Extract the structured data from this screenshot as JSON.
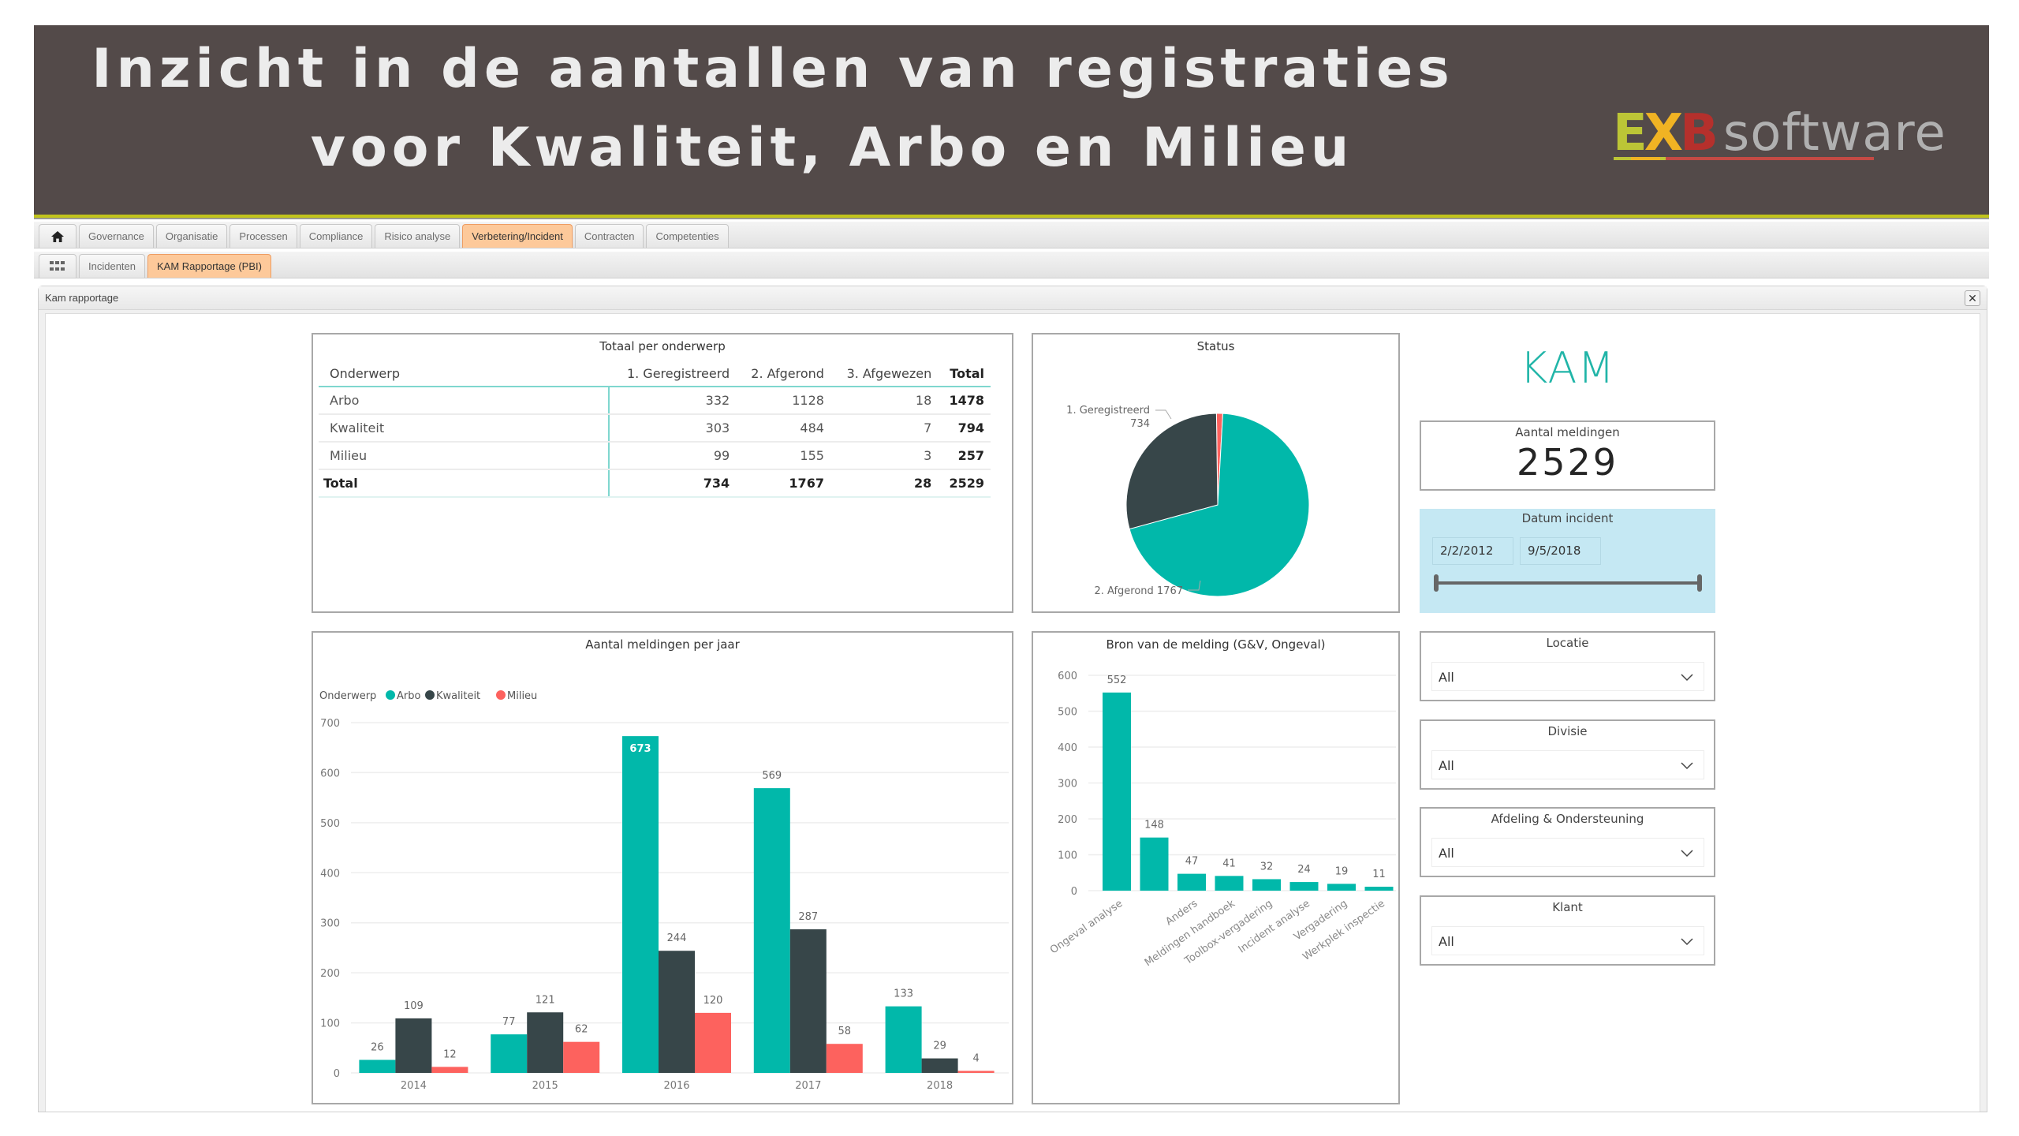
{
  "banner": {
    "title_line1": "Inzicht in de aantallen van registraties",
    "title_line2": "voor Kwaliteit, Arbo en Milieu",
    "logo": {
      "e": "E",
      "x": "X",
      "b": "B",
      "software": "software"
    }
  },
  "nav": {
    "primary_tabs": [
      {
        "label": "Governance",
        "active": false
      },
      {
        "label": "Organisatie",
        "active": false
      },
      {
        "label": "Processen",
        "active": false
      },
      {
        "label": "Compliance",
        "active": false
      },
      {
        "label": "Risico analyse",
        "active": false
      },
      {
        "label": "Verbetering/Incident",
        "active": true
      },
      {
        "label": "Contracten",
        "active": false
      },
      {
        "label": "Competenties",
        "active": false
      }
    ],
    "secondary_tabs": [
      {
        "label": "Incidenten",
        "active": false
      },
      {
        "label": "KAM Rapportage (PBI)",
        "active": true
      }
    ],
    "home_icon": "home-icon",
    "grid_icon": "grid-icon"
  },
  "window": {
    "title": "Kam rapportage",
    "close_label": "✕"
  },
  "matrix": {
    "title": "Totaal per onderwerp",
    "headers": [
      "Onderwerp",
      "1. Geregistreerd",
      "2. Afgerond",
      "3. Afgewezen",
      "Total"
    ],
    "rows": [
      {
        "name": "Arbo",
        "geregistreerd": "332",
        "afgerond": "1128",
        "afgewezen": "18",
        "total": "1478"
      },
      {
        "name": "Kwaliteit",
        "geregistreerd": "303",
        "afgerond": "484",
        "afgewezen": "7",
        "total": "794"
      },
      {
        "name": "Milieu",
        "geregistreerd": "99",
        "afgerond": "155",
        "afgewezen": "3",
        "total": "257"
      }
    ],
    "total_row": {
      "name": "Total",
      "geregistreerd": "734",
      "afgerond": "1767",
      "afgewezen": "28",
      "total": "2529"
    }
  },
  "kam": {
    "title": "KAM",
    "card_label": "Aantal meldingen",
    "card_value": "2529",
    "date_slicer": {
      "label": "Datum incident",
      "start": "2/2/2012",
      "end": "9/5/2018"
    }
  },
  "filters": [
    {
      "label": "Locatie",
      "value": "All"
    },
    {
      "label": "Divisie",
      "value": "All"
    },
    {
      "label": "Afdeling & Ondersteuning",
      "value": "All"
    },
    {
      "label": "Klant",
      "value": "All"
    }
  ],
  "colors": {
    "teal": "#01b8aa",
    "dark": "#374649",
    "red": "#fd625e",
    "accent_line": "#c1c41c",
    "banner": "#534a49"
  },
  "chart_data": [
    {
      "type": "pie",
      "title": "Status",
      "categories": [
        "1. Geregistreerd",
        "2. Afgerond",
        "3. Afgewezen"
      ],
      "values": [
        734,
        1767,
        28
      ],
      "labels_shown": [
        "1. Geregistreerd 734",
        "2. Afgerond 1767"
      ],
      "colors": [
        "#374649",
        "#01b8aa",
        "#fd625e"
      ]
    },
    {
      "type": "bar",
      "title": "Aantal meldingen per jaar",
      "legend_title": "Onderwerp",
      "legend_position": "top-left",
      "categories": [
        "2014",
        "2015",
        "2016",
        "2017",
        "2018"
      ],
      "series": [
        {
          "name": "Arbo",
          "color": "#01b8aa",
          "values": [
            26,
            77,
            673,
            569,
            133
          ]
        },
        {
          "name": "Kwaliteit",
          "color": "#374649",
          "values": [
            109,
            121,
            244,
            287,
            29
          ]
        },
        {
          "name": "Milieu",
          "color": "#fd625e",
          "values": [
            12,
            62,
            120,
            58,
            4
          ]
        }
      ],
      "yticks": [
        0,
        100,
        200,
        300,
        400,
        500,
        600,
        700
      ],
      "ylim": [
        0,
        700
      ],
      "grid": true
    },
    {
      "type": "bar",
      "title": "Bron van de melding (G&V, Ongeval)",
      "categories": [
        "Ongeval analyse",
        "",
        "Anders",
        "Meldingen handboek",
        "Toolbox-vergadering",
        "Incident analyse",
        "Vergadering",
        "Werkplek inspectie"
      ],
      "values": [
        552,
        148,
        47,
        41,
        32,
        24,
        19,
        11
      ],
      "color": "#01b8aa",
      "yticks": [
        0,
        100,
        200,
        300,
        400,
        500,
        600
      ],
      "ylim": [
        0,
        600
      ],
      "grid": true
    }
  ]
}
